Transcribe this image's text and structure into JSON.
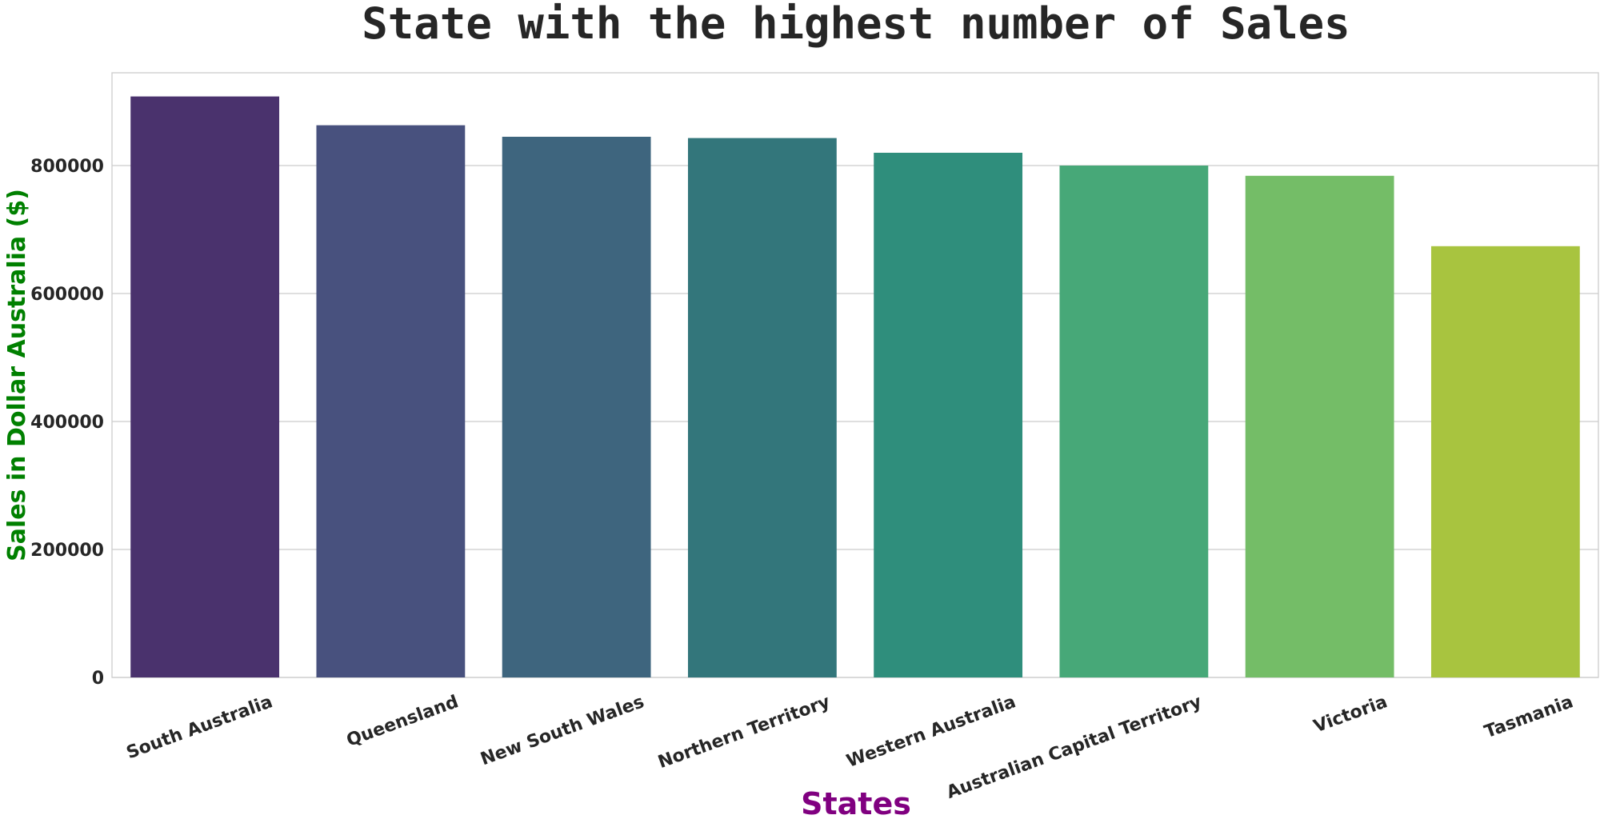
{
  "chart_data": {
    "type": "bar",
    "title": "State with the highest number of Sales",
    "xlabel": "States",
    "ylabel": "Sales in Dollar Australia ($)",
    "categories": [
      "South Australia",
      "Queensland",
      "New South Wales",
      "Northern Territory",
      "Western Australia",
      "Australian Capital Territory",
      "Victoria",
      "Tasmania"
    ],
    "values": [
      908000,
      863000,
      845000,
      843000,
      820000,
      800000,
      784000,
      674000
    ],
    "colors": [
      "#4a326d",
      "#48517e",
      "#3e657e",
      "#33767b",
      "#2f8e7c",
      "#47a878",
      "#74bd67",
      "#a8c43f"
    ],
    "ylim": [
      0,
      945000
    ],
    "yticks": [
      0,
      200000,
      400000,
      600000,
      800000
    ],
    "ytick_labels": [
      "0",
      "200000",
      "400000",
      "600000",
      "800000"
    ],
    "grid": true,
    "xlabel_color": "#800080",
    "ylabel_color": "#008000"
  }
}
